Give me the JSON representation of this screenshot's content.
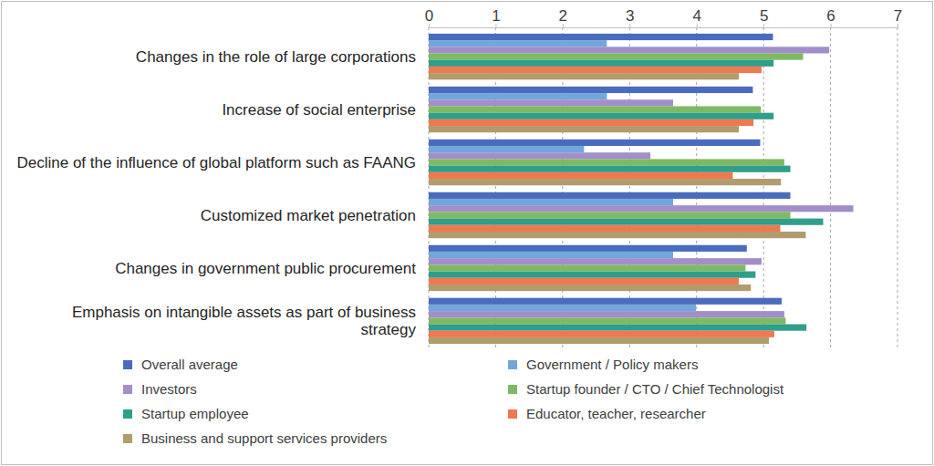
{
  "chart_data": {
    "type": "bar",
    "orientation": "horizontal",
    "grid": true,
    "legend": "bottom",
    "categories": [
      "Changes in the role of large corporations",
      "Increase of social enterprise",
      "Decline of the influence of global platform such as FAANG",
      "Customized market penetration",
      "Changes in government public procurement",
      "Emphasis on intangible assets as part of business strategy"
    ],
    "xlim": [
      0,
      7
    ],
    "xticks": [
      0,
      1,
      2,
      3,
      4,
      5,
      6,
      7
    ],
    "series": [
      {
        "name": "Overall average",
        "color": "#4a6cbf",
        "values": [
          5.14,
          4.84,
          4.95,
          5.4,
          4.75,
          5.27
        ]
      },
      {
        "name": "Government / Policy makers",
        "color": "#72a7dc",
        "values": [
          2.66,
          2.66,
          2.32,
          3.65,
          3.65,
          3.99
        ]
      },
      {
        "name": "Investors",
        "color": "#a28ecb",
        "values": [
          5.98,
          3.65,
          3.31,
          6.34,
          4.97,
          5.31
        ]
      },
      {
        "name": "Startup founder / CTO / Chief Technologist",
        "color": "#7fba62",
        "values": [
          5.59,
          4.96,
          5.31,
          5.4,
          4.73,
          5.33
        ]
      },
      {
        "name": "Startup employee",
        "color": "#2f9f8b",
        "values": [
          5.15,
          5.15,
          5.4,
          5.89,
          4.88,
          5.64
        ]
      },
      {
        "name": "Educator, teacher, researcher",
        "color": "#f0784f",
        "values": [
          4.97,
          4.85,
          4.54,
          5.25,
          4.63,
          5.16
        ]
      },
      {
        "name": "Business and support services providers",
        "color": "#b19c6d",
        "values": [
          4.63,
          4.63,
          5.26,
          5.63,
          4.81,
          5.08
        ]
      }
    ]
  }
}
